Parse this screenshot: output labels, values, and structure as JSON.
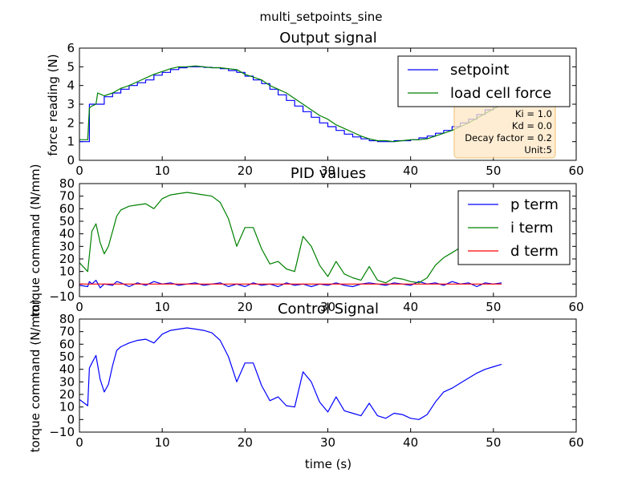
{
  "figure_title": "multi_setpoints_sine",
  "chart_data": [
    {
      "type": "line",
      "title": "Output signal",
      "xlabel": "",
      "ylabel": "force reading (N)",
      "xlim": [
        0,
        60
      ],
      "ylim": [
        0,
        6
      ],
      "xticks": [
        "0",
        "10",
        "20",
        "30",
        "40",
        "50",
        "60"
      ],
      "yticks": [
        "0",
        "1",
        "2",
        "3",
        "4",
        "5",
        "6"
      ],
      "grid": false,
      "legend_position": "top-right",
      "annotation": [
        "Ki = 1.0",
        "Kd = 0.0",
        "Decay factor = 0.2",
        "Unit:5"
      ],
      "series": [
        {
          "name": "setpoint",
          "color": "#0000ff",
          "step": true,
          "x": [
            0,
            1,
            1.2,
            2,
            3,
            4,
            5,
            6,
            7,
            8,
            9,
            10,
            11,
            12,
            13,
            14,
            15,
            16,
            17,
            18,
            19,
            20,
            21,
            22,
            23,
            24,
            25,
            26,
            27,
            28,
            29,
            30,
            31,
            32,
            33,
            34,
            35,
            36,
            37,
            38,
            39,
            40,
            41,
            42,
            43,
            44,
            45,
            46,
            47,
            48,
            49,
            50,
            51
          ],
          "y": [
            1.0,
            1.0,
            3.0,
            3.0,
            3.4,
            3.6,
            3.8,
            4.0,
            4.15,
            4.3,
            4.55,
            4.7,
            4.85,
            4.95,
            5.0,
            5.0,
            4.97,
            4.95,
            4.9,
            4.8,
            4.7,
            4.5,
            4.3,
            4.1,
            3.8,
            3.5,
            3.2,
            2.9,
            2.6,
            2.3,
            2.0,
            1.8,
            1.6,
            1.4,
            1.25,
            1.15,
            1.05,
            1.0,
            1.0,
            1.05,
            1.05,
            1.1,
            1.2,
            1.3,
            1.45,
            1.6,
            1.8,
            2.0,
            2.2,
            2.45,
            2.7,
            2.9,
            2.95
          ]
        },
        {
          "name": "load cell force",
          "color": "#008000",
          "step": false,
          "x": [
            0,
            0.5,
            1,
            1.2,
            1.5,
            2,
            2.2,
            3,
            4,
            5,
            6,
            7,
            8,
            9,
            10,
            11,
            12,
            13,
            14,
            15,
            16,
            17,
            18,
            19,
            20,
            21,
            22,
            23,
            24,
            25,
            26,
            27,
            28,
            29,
            30,
            31,
            32,
            33,
            34,
            35,
            36,
            37,
            38,
            39,
            40,
            41,
            42,
            43,
            44,
            45,
            46,
            47,
            48,
            49,
            50,
            51
          ],
          "y": [
            1.1,
            1.1,
            1.1,
            2.8,
            2.9,
            3.0,
            3.6,
            3.45,
            3.6,
            3.85,
            4.0,
            4.2,
            4.4,
            4.6,
            4.75,
            4.9,
            5.0,
            5.0,
            5.05,
            5.0,
            4.95,
            4.95,
            4.9,
            4.85,
            4.6,
            4.45,
            4.3,
            4.0,
            3.8,
            3.6,
            3.3,
            3.0,
            2.7,
            2.4,
            2.2,
            1.9,
            1.7,
            1.5,
            1.3,
            1.15,
            1.05,
            1.05,
            1.0,
            1.05,
            1.1,
            1.1,
            1.15,
            1.3,
            1.45,
            1.6,
            1.8,
            2.0,
            2.25,
            2.5,
            2.75,
            2.95
          ]
        }
      ]
    },
    {
      "type": "line",
      "title": "PID values",
      "xlabel": "",
      "ylabel": "torque command (N/mm)",
      "xlim": [
        0,
        60
      ],
      "ylim": [
        -10,
        80
      ],
      "xticks": [
        "0",
        "10",
        "20",
        "30",
        "40",
        "50",
        "60"
      ],
      "yticks": [
        "−10",
        "0",
        "10",
        "20",
        "30",
        "40",
        "50",
        "60",
        "70",
        "80"
      ],
      "grid": false,
      "legend_position": "top-right",
      "series": [
        {
          "name": "p term",
          "color": "#0000ff",
          "x": [
            0,
            1,
            1.2,
            1.5,
            2,
            2.5,
            3,
            4,
            4.5,
            5,
            6,
            7,
            8,
            9,
            10,
            11,
            12,
            13,
            14,
            15,
            16,
            17,
            18,
            19,
            20,
            21,
            22,
            23,
            24,
            25,
            26,
            27,
            28,
            29,
            30,
            31,
            32,
            33,
            34,
            35,
            36,
            37,
            38,
            39,
            40,
            41,
            42,
            43,
            44,
            45,
            46,
            47,
            48,
            49,
            50,
            51
          ],
          "y": [
            -1,
            -2,
            2,
            0,
            3,
            -3,
            0,
            -1,
            2,
            1,
            -2,
            1,
            -1,
            2,
            0,
            1,
            -1,
            0,
            1,
            -1,
            0,
            1,
            -2,
            0,
            -2,
            1,
            -1,
            0,
            -2,
            1,
            -1,
            0,
            -2,
            0,
            -1,
            1,
            -1,
            -2,
            0,
            1,
            0,
            -1,
            1,
            0,
            -1,
            2,
            0,
            1,
            -1,
            2,
            0,
            1,
            -2,
            1,
            0,
            1
          ]
        },
        {
          "name": "i term",
          "color": "#008000",
          "x": [
            0,
            1,
            1.5,
            2,
            2.5,
            3,
            3.5,
            4,
            4.5,
            5,
            6,
            7,
            8,
            9,
            10,
            11,
            12,
            13,
            14,
            15,
            16,
            17,
            18,
            19,
            20,
            21,
            22,
            23,
            24,
            25,
            26,
            27,
            28,
            29,
            30,
            31,
            32,
            33,
            34,
            35,
            36,
            37,
            38,
            39,
            40,
            41,
            42,
            43,
            44,
            45,
            46,
            47,
            48,
            49,
            50,
            51
          ],
          "y": [
            17,
            10,
            42,
            48,
            33,
            24,
            30,
            42,
            54,
            59,
            62,
            63,
            64,
            60,
            68,
            71,
            72,
            73,
            72,
            71,
            70,
            65,
            52,
            30,
            45,
            45,
            28,
            16,
            18,
            12,
            10,
            38,
            30,
            15,
            6,
            18,
            8,
            5,
            3,
            14,
            3,
            1,
            5,
            4,
            2,
            1,
            5,
            15,
            21,
            25,
            29,
            33,
            37,
            40,
            41,
            42
          ]
        },
        {
          "name": "d term",
          "color": "#ff0000",
          "x": [
            0,
            51
          ],
          "y": [
            0,
            0
          ]
        }
      ]
    },
    {
      "type": "line",
      "title": "Control Signal",
      "xlabel": "time (s)",
      "ylabel": "torque command (N/mm)",
      "xlim": [
        0,
        60
      ],
      "ylim": [
        -10,
        80
      ],
      "xticks": [
        "0",
        "10",
        "20",
        "30",
        "40",
        "50",
        "60"
      ],
      "yticks": [
        "−10",
        "0",
        "10",
        "20",
        "30",
        "40",
        "50",
        "60",
        "70",
        "80"
      ],
      "grid": false,
      "series": [
        {
          "name": "",
          "color": "#0000ff",
          "x": [
            0,
            1,
            1.2,
            1.5,
            2,
            2.5,
            3,
            3.5,
            4,
            4.5,
            5,
            6,
            7,
            8,
            9,
            10,
            11,
            12,
            13,
            14,
            15,
            16,
            17,
            18,
            19,
            20,
            21,
            22,
            23,
            24,
            25,
            26,
            27,
            28,
            29,
            30,
            31,
            32,
            33,
            34,
            35,
            36,
            37,
            38,
            39,
            40,
            41,
            42,
            43,
            44,
            45,
            46,
            47,
            48,
            49,
            50,
            51
          ],
          "y": [
            16,
            11,
            41,
            45,
            51,
            32,
            22,
            28,
            43,
            55,
            58,
            61,
            63,
            64,
            61,
            68,
            71,
            72,
            73,
            72,
            71,
            69,
            63,
            50,
            30,
            45,
            45,
            27,
            15,
            18,
            11,
            10,
            38,
            30,
            14,
            6,
            18,
            7,
            5,
            3,
            13,
            3,
            1,
            5,
            4,
            1,
            0,
            4,
            14,
            22,
            25,
            29,
            33,
            37,
            40,
            42,
            44
          ]
        }
      ]
    }
  ]
}
